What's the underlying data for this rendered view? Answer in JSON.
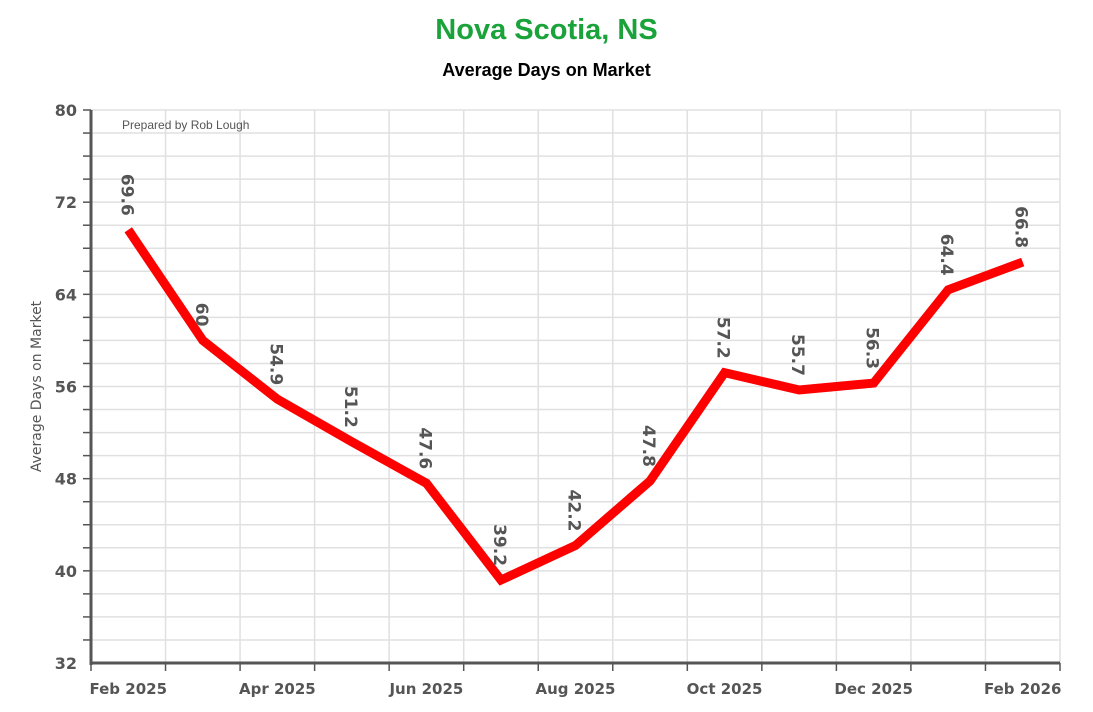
{
  "chart_data": {
    "type": "line",
    "title": "Nova Scotia, NS",
    "subtitle": "Average Days on Market",
    "ylabel": "Average Days on Market",
    "xlabel": "",
    "annotation": "Prepared by Rob Lough",
    "ylim": [
      32,
      80
    ],
    "yticks": [
      32,
      40,
      48,
      56,
      64,
      72,
      80
    ],
    "x": [
      "Feb 2025",
      "Mar 2025",
      "Apr 2025",
      "May 2025",
      "Jun 2025",
      "Jul 2025",
      "Aug 2025",
      "Sep 2025",
      "Oct 2025",
      "Nov 2025",
      "Dec 2025",
      "Jan 2026",
      "Feb 2026"
    ],
    "xtick_labels": [
      "Feb 2025",
      "Apr 2025",
      "Jun 2025",
      "Aug 2025",
      "Oct 2025",
      "Dec 2025",
      "Feb 2026"
    ],
    "values": [
      69.6,
      60,
      54.9,
      51.2,
      47.6,
      39.2,
      42.2,
      47.8,
      57.2,
      55.7,
      56.3,
      64.4,
      66.8
    ],
    "data_labels": [
      "69.6",
      "60",
      "54.9",
      "51.2",
      "47.6",
      "39.2",
      "42.2",
      "47.8",
      "57.2",
      "55.7",
      "56.3",
      "64.4",
      "66.8"
    ],
    "line_color": "#ff0000",
    "title_color": "#1aa33a",
    "grid": true
  }
}
